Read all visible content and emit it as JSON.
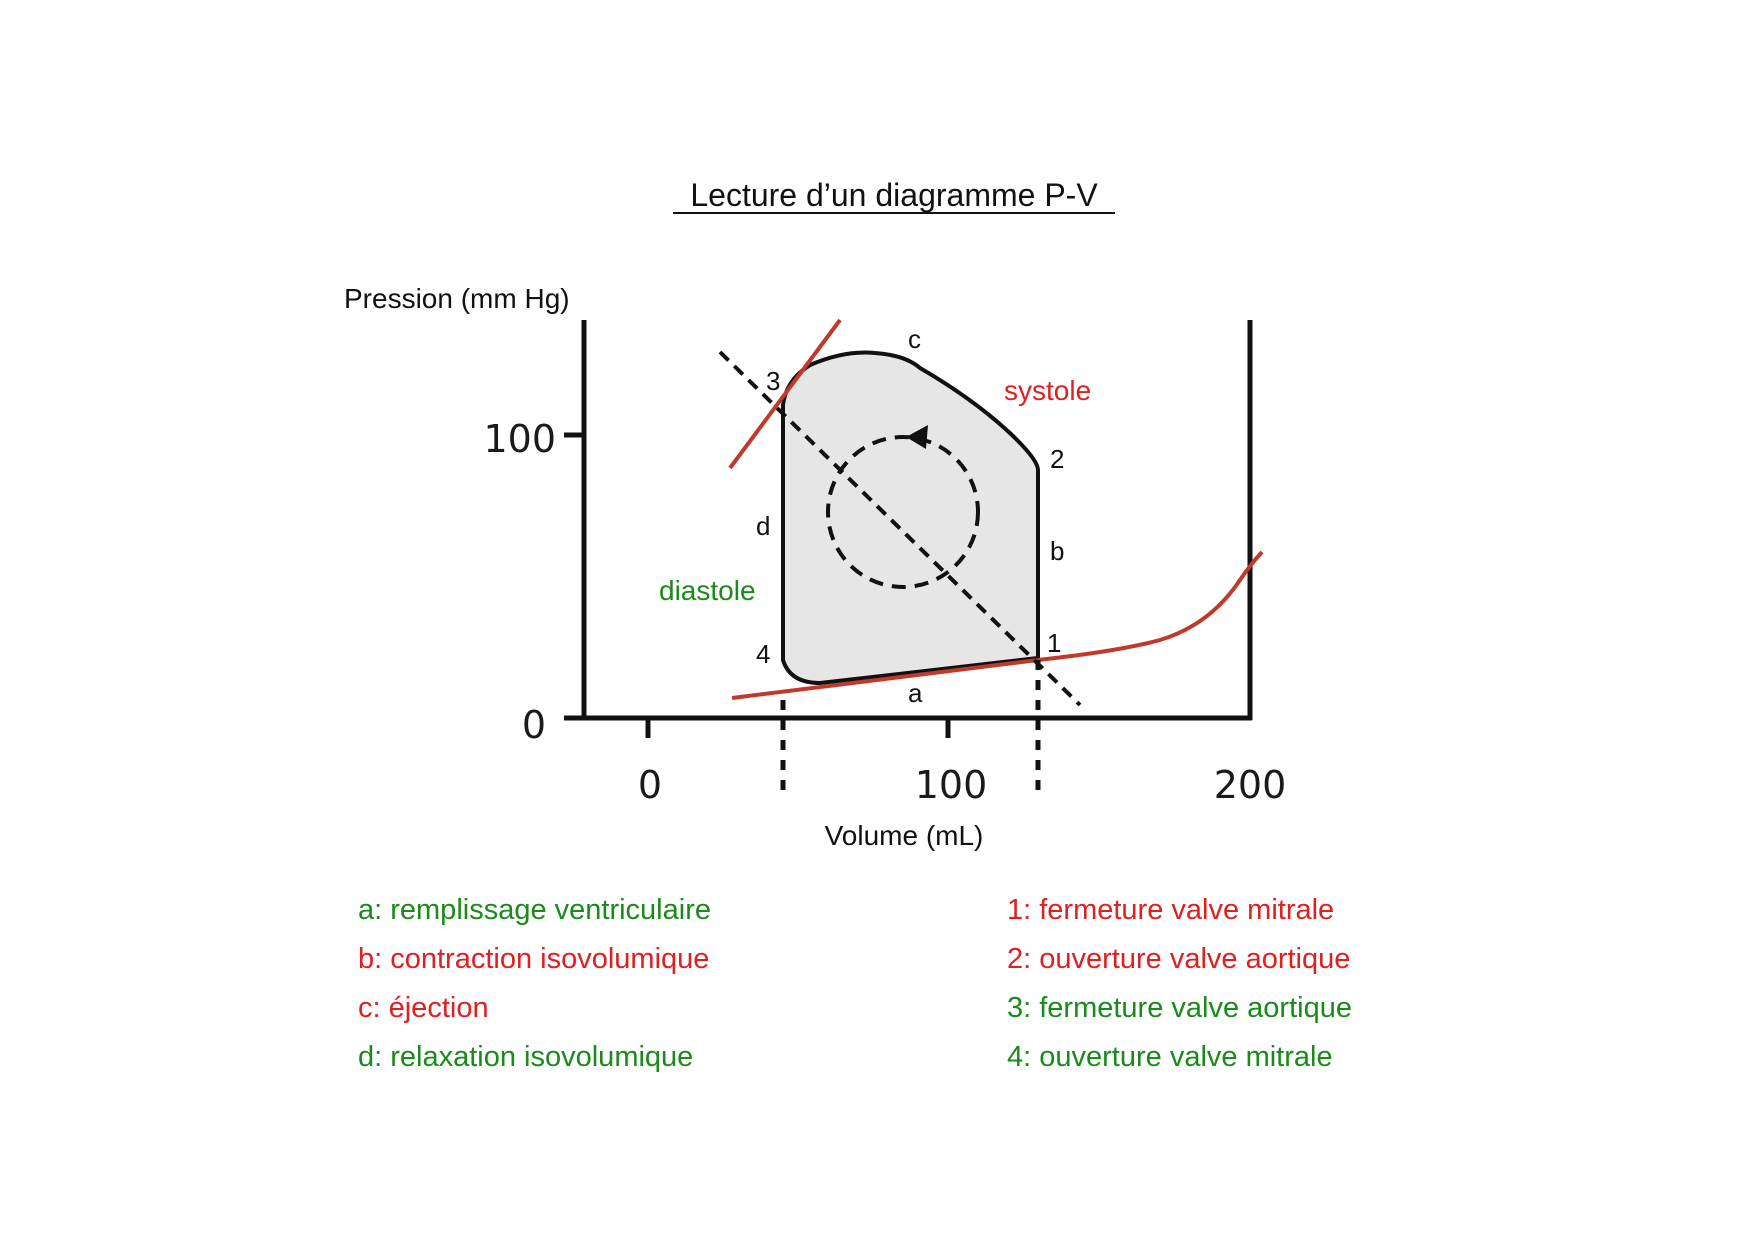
{
  "title": "Lecture d’un diagramme P-V",
  "axes": {
    "y_title": "Pression (mm Hg)",
    "x_title": "Volume (mL)",
    "y_ticks": [
      "100",
      "0"
    ],
    "x_ticks": [
      "0",
      "100",
      "200"
    ]
  },
  "segment_labels": {
    "a": "a",
    "b": "b",
    "c": "c",
    "d": "d"
  },
  "point_labels": {
    "p1": "1",
    "p2": "2",
    "p3": "3",
    "p4": "4"
  },
  "phases": {
    "systole": "systole",
    "diastole": "diastole"
  },
  "legend": {
    "left": [
      {
        "text": "a: remplissage ventriculaire",
        "color": "#1a8a1a"
      },
      {
        "text": "b: contraction isovolumique",
        "color": "#e02020"
      },
      {
        "text": "c: éjection",
        "color": "#e02020"
      },
      {
        "text": "d: relaxation isovolumique",
        "color": "#1a8a1a"
      }
    ],
    "right": [
      {
        "text": "1: fermeture valve mitrale",
        "color": "#e02020"
      },
      {
        "text": "2: ouverture valve aortique",
        "color": "#e02020"
      },
      {
        "text": "3: fermeture valve aortique",
        "color": "#1a8a1a"
      },
      {
        "text": "4: ouverture valve mitrale",
        "color": "#1a8a1a"
      }
    ]
  },
  "colors": {
    "red": "#c0392b",
    "label_red": "#e02020",
    "green": "#1a8a1a",
    "loop_fill": "#e6e6e6",
    "ink": "#111111"
  }
}
